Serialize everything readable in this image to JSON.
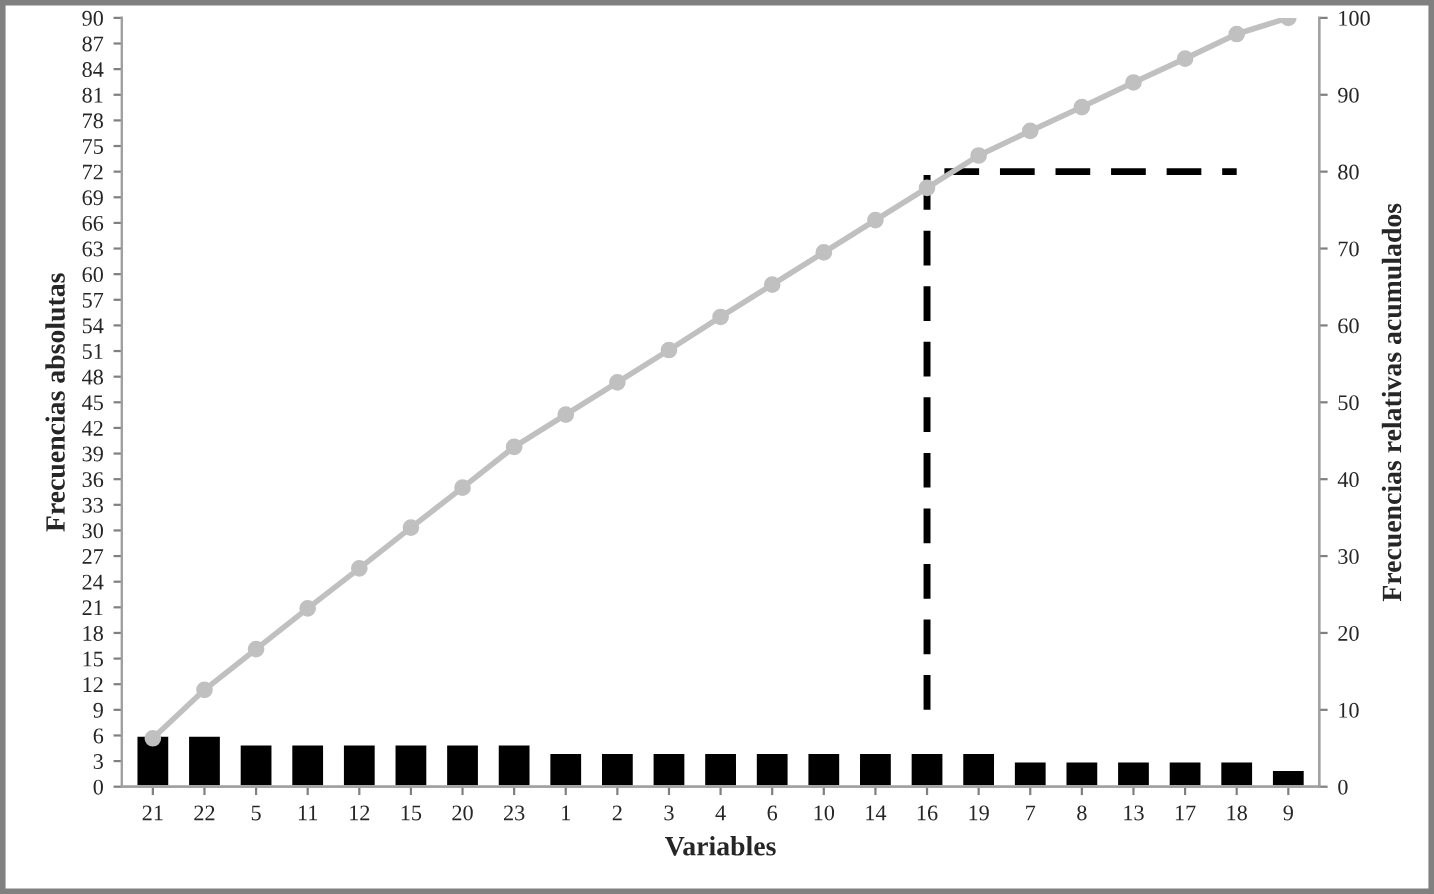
{
  "chart_data": {
    "type": "bar",
    "xlabel": "Variables",
    "ylabel": "Frecuencias absolutas",
    "y2label": "Frecuencias relativas acumulados",
    "categories": [
      "21",
      "22",
      "5",
      "11",
      "12",
      "15",
      "20",
      "23",
      "1",
      "2",
      "3",
      "4",
      "6",
      "10",
      "14",
      "16",
      "19",
      "7",
      "8",
      "13",
      "17",
      "18",
      "9"
    ],
    "series": [
      {
        "color": "#000000",
        "values": [
          6,
          6,
          5,
          5,
          5,
          5,
          5,
          5,
          4,
          4,
          4,
          4,
          4,
          4,
          4,
          4,
          4,
          3,
          3,
          3,
          3,
          3,
          2
        ]
      },
      {
        "type": "line",
        "axis": "y2",
        "color": "#c0c0c0",
        "marker": "circle",
        "line_style": "solid",
        "values": [
          6.3,
          12.6,
          17.9,
          23.2,
          28.4,
          33.7,
          38.9,
          44.2,
          48.4,
          52.6,
          56.8,
          61.1,
          65.3,
          69.5,
          73.7,
          77.9,
          82.1,
          85.3,
          88.4,
          91.6,
          94.7,
          97.9,
          100
        ]
      },
      {
        "type": "line",
        "axis": "y2",
        "color": "#000000",
        "marker": "none",
        "line_style": "dashed",
        "x": [
          "16",
          "16",
          "18"
        ],
        "values": [
          10,
          80,
          80
        ]
      }
    ],
    "ylim": [
      0,
      90
    ],
    "yticks": [
      0,
      3,
      6,
      9,
      12,
      15,
      18,
      21,
      24,
      27,
      30,
      33,
      36,
      39,
      42,
      45,
      48,
      51,
      54,
      57,
      60,
      63,
      66,
      69,
      72,
      75,
      78,
      81,
      84,
      87,
      90
    ],
    "y2lim": [
      0,
      100
    ],
    "y2ticks": [
      0,
      10,
      20,
      30,
      40,
      50,
      60,
      70,
      80,
      90,
      100
    ],
    "grid": false,
    "legend": false
  }
}
